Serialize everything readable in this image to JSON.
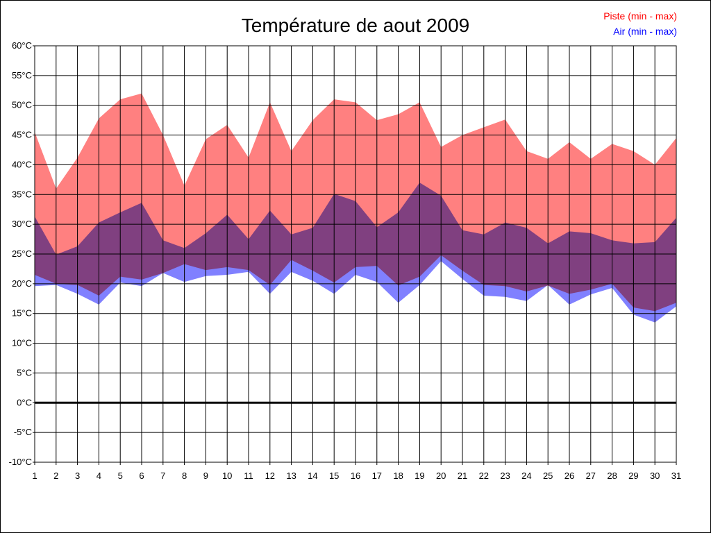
{
  "chart_data": {
    "type": "area",
    "title": "Température de aout 2009",
    "xlabel": "",
    "ylabel": "",
    "ylim": [
      -10,
      60
    ],
    "ytick_step": 5,
    "ytick_suffix": "°C",
    "x": [
      1,
      2,
      3,
      4,
      5,
      6,
      7,
      8,
      9,
      10,
      11,
      12,
      13,
      14,
      15,
      16,
      17,
      18,
      19,
      20,
      21,
      22,
      23,
      24,
      25,
      26,
      27,
      28,
      29,
      30,
      31
    ],
    "series": [
      {
        "name": "Piste (min - max)",
        "color": "#ff0000",
        "fill": "#ff8080",
        "min": [
          21.5,
          20.0,
          19.8,
          18.0,
          21.2,
          20.7,
          21.8,
          23.3,
          22.3,
          22.8,
          22.3,
          19.8,
          24.0,
          22.2,
          20.2,
          22.8,
          23.0,
          19.7,
          21.2,
          24.8,
          22.2,
          19.8,
          19.6,
          18.7,
          19.7,
          18.3,
          19.0,
          20.0,
          16.0,
          15.4,
          16.8
        ],
        "max": [
          45.5,
          36.0,
          41.2,
          47.8,
          51.0,
          52.0,
          45.0,
          36.5,
          44.3,
          46.7,
          41.2,
          50.5,
          42.3,
          47.5,
          51.0,
          50.5,
          47.5,
          48.5,
          50.5,
          43.0,
          45.0,
          46.3,
          47.6,
          42.3,
          41.0,
          43.8,
          41.0,
          43.5,
          42.3,
          40.0,
          44.5
        ]
      },
      {
        "name": "Air (min - max)",
        "color": "#0000ff",
        "fill": "#8080ff",
        "min": [
          19.6,
          19.8,
          18.3,
          16.5,
          20.2,
          19.6,
          21.8,
          20.3,
          21.3,
          21.5,
          22.0,
          18.3,
          22.0,
          20.5,
          18.3,
          21.5,
          20.3,
          16.8,
          19.8,
          23.8,
          20.8,
          18.0,
          17.8,
          17.1,
          19.8,
          16.5,
          18.2,
          19.3,
          14.8,
          13.5,
          16.2
        ],
        "max": [
          31.3,
          24.9,
          26.3,
          30.3,
          32.0,
          33.6,
          27.3,
          26.0,
          28.5,
          31.6,
          27.5,
          32.3,
          28.3,
          29.4,
          35.1,
          33.9,
          29.5,
          32.0,
          37.0,
          34.8,
          29.0,
          28.3,
          30.3,
          29.4,
          26.8,
          28.8,
          28.5,
          27.3,
          26.8,
          27.0,
          31.1
        ]
      }
    ],
    "legend": {
      "position": "top-right",
      "entries": [
        "Piste (min - max)",
        "Air (min - max)"
      ]
    },
    "grid": true,
    "zero_line": true
  }
}
